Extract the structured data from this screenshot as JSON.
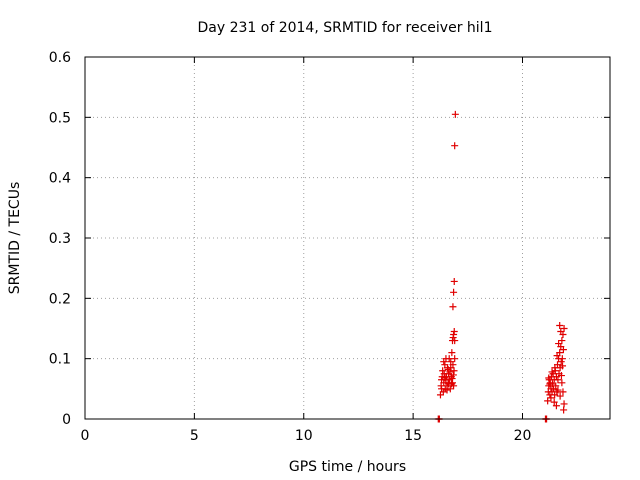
{
  "chart_data": {
    "type": "scatter",
    "title": "Day 231 of 2014, SRMTID for receiver hil1",
    "xlabel": "GPS time / hours",
    "ylabel": "SRMTID / TECUs",
    "xlim": [
      0,
      24
    ],
    "ylim": [
      0,
      0.6
    ],
    "xticks": [
      0,
      5,
      10,
      15,
      20
    ],
    "xtick_labels": [
      "0",
      "5",
      "10",
      "15",
      "20"
    ],
    "yticks": [
      0,
      0.1,
      0.2,
      0.3,
      0.4,
      0.5,
      0.6
    ],
    "ytick_labels": [
      "0",
      "0.1",
      "0.2",
      "0.3",
      "0.4",
      "0.5",
      "0.6"
    ],
    "grid": true,
    "marker": "+",
    "color": "#e00000",
    "series": [
      {
        "name": "hil1",
        "points": [
          [
            16.15,
            0.0
          ],
          [
            16.18,
            0.0
          ],
          [
            16.2,
            0.0
          ],
          [
            16.25,
            0.04
          ],
          [
            16.28,
            0.055
          ],
          [
            16.3,
            0.065
          ],
          [
            16.33,
            0.07
          ],
          [
            16.35,
            0.08
          ],
          [
            16.38,
            0.045
          ],
          [
            16.4,
            0.06
          ],
          [
            16.42,
            0.075
          ],
          [
            16.45,
            0.09
          ],
          [
            16.47,
            0.05
          ],
          [
            16.5,
            0.065
          ],
          [
            16.52,
            0.07
          ],
          [
            16.55,
            0.055
          ],
          [
            16.57,
            0.085
          ],
          [
            16.6,
            0.06
          ],
          [
            16.62,
            0.075
          ],
          [
            16.65,
            0.1
          ],
          [
            16.67,
            0.065
          ],
          [
            16.7,
            0.05
          ],
          [
            16.72,
            0.085
          ],
          [
            16.75,
            0.07
          ],
          [
            16.77,
            0.11
          ],
          [
            16.8,
            0.06
          ],
          [
            16.82,
            0.09
          ],
          [
            16.85,
            0.055
          ],
          [
            16.87,
            0.08
          ],
          [
            16.9,
            0.1
          ],
          [
            16.4,
            0.095
          ],
          [
            16.5,
            0.1
          ],
          [
            16.55,
            0.048
          ],
          [
            16.62,
            0.058
          ],
          [
            16.68,
            0.078
          ],
          [
            16.72,
            0.095
          ],
          [
            16.78,
            0.067
          ],
          [
            16.84,
            0.073
          ],
          [
            16.3,
            0.05
          ],
          [
            16.45,
            0.068
          ],
          [
            16.6,
            0.082
          ],
          [
            16.76,
            0.058
          ],
          [
            16.8,
            0.13
          ],
          [
            16.83,
            0.135
          ],
          [
            16.85,
            0.14
          ],
          [
            16.88,
            0.145
          ],
          [
            16.9,
            0.13
          ],
          [
            16.82,
            0.186
          ],
          [
            16.85,
            0.21
          ],
          [
            16.88,
            0.228
          ],
          [
            16.9,
            0.453
          ],
          [
            16.93,
            0.505
          ],
          [
            21.05,
            0.0
          ],
          [
            21.08,
            0.0
          ],
          [
            21.1,
            0.0
          ],
          [
            21.15,
            0.03
          ],
          [
            21.18,
            0.045
          ],
          [
            21.2,
            0.055
          ],
          [
            21.22,
            0.065
          ],
          [
            21.25,
            0.04
          ],
          [
            21.27,
            0.06
          ],
          [
            21.3,
            0.05
          ],
          [
            21.32,
            0.07
          ],
          [
            21.35,
            0.045
          ],
          [
            21.37,
            0.058
          ],
          [
            21.4,
            0.075
          ],
          [
            21.42,
            0.05
          ],
          [
            21.45,
            0.065
          ],
          [
            21.47,
            0.04
          ],
          [
            21.5,
            0.08
          ],
          [
            21.52,
            0.055
          ],
          [
            21.55,
            0.07
          ],
          [
            21.57,
            0.045
          ],
          [
            21.6,
            0.09
          ],
          [
            21.62,
            0.065
          ],
          [
            21.65,
            0.1
          ],
          [
            21.67,
            0.075
          ],
          [
            21.7,
            0.11
          ],
          [
            21.72,
            0.085
          ],
          [
            21.75,
            0.12
          ],
          [
            21.77,
            0.095
          ],
          [
            21.8,
            0.13
          ],
          [
            21.82,
            0.1
          ],
          [
            21.85,
            0.14
          ],
          [
            21.87,
            0.115
          ],
          [
            21.9,
            0.15
          ],
          [
            21.7,
            0.155
          ],
          [
            21.75,
            0.145
          ],
          [
            21.8,
            0.06
          ],
          [
            21.85,
            0.045
          ],
          [
            21.9,
            0.025
          ],
          [
            21.88,
            0.015
          ],
          [
            21.3,
            0.035
          ],
          [
            21.45,
            0.028
          ],
          [
            21.55,
            0.022
          ],
          [
            21.2,
            0.068
          ],
          [
            21.35,
            0.078
          ],
          [
            21.48,
            0.085
          ],
          [
            21.62,
            0.048
          ],
          [
            21.72,
            0.038
          ],
          [
            21.78,
            0.072
          ],
          [
            21.83,
            0.088
          ],
          [
            21.65,
            0.125
          ],
          [
            21.58,
            0.105
          ],
          [
            21.25,
            0.058
          ]
        ]
      }
    ]
  }
}
